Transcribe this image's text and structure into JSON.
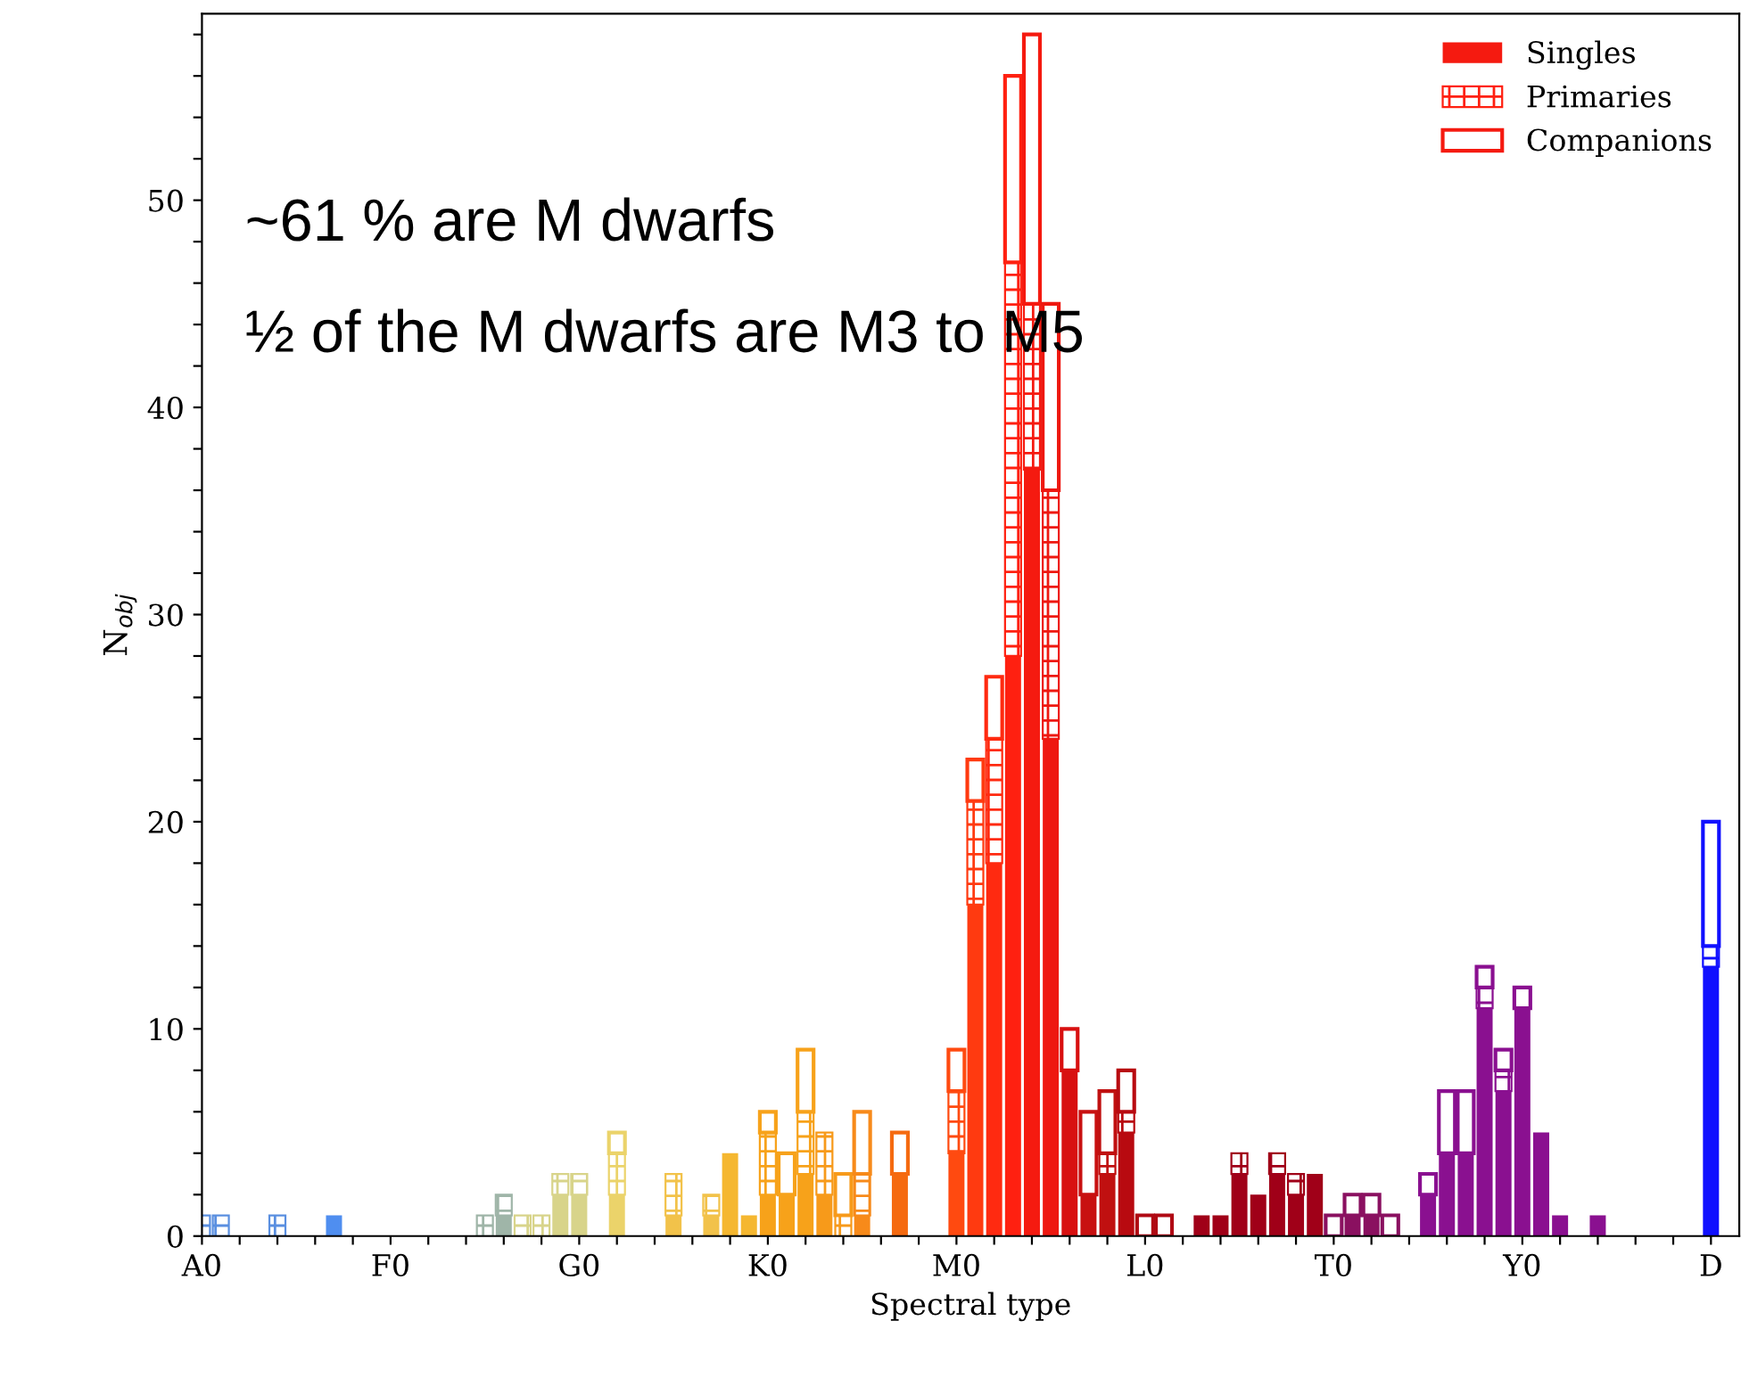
{
  "chart_data": {
    "type": "bar",
    "stacked": true,
    "xlabel": "Spectral type",
    "ylabel": "N$_{obj}$",
    "legend": "top right",
    "grid": false,
    "categories": [
      "A0",
      null,
      null,
      null,
      null,
      null,
      null,
      null,
      null,
      null,
      "F0",
      null,
      null,
      null,
      null,
      null,
      null,
      null,
      null,
      null,
      "G0",
      null,
      null,
      null,
      null,
      null,
      null,
      null,
      null,
      null,
      "K0",
      null,
      null,
      null,
      null,
      null,
      null,
      null,
      null,
      null,
      "M0",
      null,
      null,
      null,
      null,
      null,
      null,
      null,
      null,
      null,
      "L0",
      null,
      null,
      null,
      null,
      null,
      null,
      null,
      null,
      null,
      "T0",
      null,
      null,
      null,
      null,
      null,
      null,
      null,
      null,
      null,
      "Y0",
      null,
      null,
      null,
      null,
      null,
      null,
      null,
      null,
      null,
      "D",
      null
    ],
    "series": [
      {
        "name": "Singles",
        "colors": [
          null,
          null,
          null,
          null,
          null,
          null,
          null,
          "#4f8ef0",
          null,
          null,
          null,
          null,
          null,
          null,
          null,
          null,
          "#9fb5a8",
          null,
          null,
          "#d8d48a",
          "#d8d48a",
          null,
          "#ebd36a",
          null,
          null,
          "#f2c24a",
          null,
          "#f2c24a",
          "#f5b730",
          "#f5b730",
          "#f7a21a",
          "#f7a21a",
          "#f7a21a",
          "#f79a1a",
          null,
          "#f78a1a",
          null,
          "#f56a10",
          null,
          null,
          "#ff4a10",
          "#ff3a10",
          "#ff2a10",
          "#ff2010",
          "#f51a10",
          "#ee1810",
          "#d81010",
          "#c81010",
          "#c01010",
          "#b80a10",
          null,
          null,
          null,
          "#a00018",
          "#a00018",
          "#a00018",
          "#a00018",
          "#a00018",
          "#a00018",
          "#a00018",
          null,
          "#8a1060",
          "#8a1060",
          null,
          null,
          "#8a1090",
          "#8a1090",
          "#8a1090",
          "#8a1090",
          "#8a1090",
          "#8a1090",
          "#8a1090",
          "#8a1090",
          null,
          "#8a1090",
          null,
          null,
          null,
          null,
          null,
          "#1010ff",
          null
        ],
        "values": [
          0,
          0,
          0,
          0,
          0,
          0,
          0,
          1,
          0,
          0,
          0,
          0,
          0,
          0,
          0,
          0,
          1,
          0,
          0,
          2,
          2,
          0,
          2,
          0,
          0,
          1,
          0,
          1,
          4,
          1,
          2,
          2,
          3,
          2,
          0,
          1,
          0,
          3,
          0,
          0,
          4,
          16,
          18,
          28,
          37,
          24,
          8,
          2,
          3,
          5,
          0,
          0,
          0,
          1,
          1,
          3,
          2,
          3,
          2,
          3,
          0,
          1,
          1,
          0,
          0,
          2,
          4,
          4,
          11,
          7,
          11,
          5,
          1,
          0,
          1,
          0,
          0,
          0,
          0,
          0,
          13,
          0
        ]
      },
      {
        "name": "Primaries",
        "colors": [
          "#5a8fe0",
          "#5a8fe0",
          null,
          null,
          "#5a8fe0",
          null,
          null,
          null,
          null,
          null,
          null,
          null,
          null,
          null,
          null,
          "#9fb5a8",
          "#9fb5a8",
          "#d8d48a",
          "#d8d48a",
          "#d8d48a",
          "#d8d48a",
          null,
          "#ebd36a",
          null,
          null,
          "#f2c24a",
          null,
          "#f2c24a",
          null,
          null,
          "#f7a21a",
          null,
          "#f7a21a",
          "#f79a1a",
          "#f79a1a",
          "#f78a1a",
          null,
          null,
          null,
          null,
          "#ff4a10",
          "#ff3a10",
          "#ff2a10",
          "#ff2010",
          "#f51a10",
          "#ee1810",
          null,
          null,
          "#c01010",
          "#b80a10",
          null,
          null,
          null,
          null,
          null,
          "#a00018",
          null,
          "#a00018",
          "#a00018",
          null,
          null,
          null,
          null,
          null,
          null,
          null,
          null,
          null,
          "#8a1090",
          "#8a1090",
          null,
          null,
          null,
          null,
          null,
          null,
          null,
          null,
          null,
          null,
          "#1010ff",
          null
        ],
        "values": [
          1,
          1,
          0,
          0,
          1,
          0,
          0,
          0,
          0,
          0,
          0,
          0,
          0,
          0,
          0,
          1,
          1,
          1,
          1,
          1,
          1,
          0,
          2,
          0,
          0,
          2,
          0,
          1,
          0,
          0,
          3,
          0,
          3,
          3,
          1,
          2,
          0,
          0,
          0,
          0,
          3,
          5,
          6,
          19,
          8,
          12,
          0,
          0,
          1,
          1,
          0,
          0,
          0,
          0,
          0,
          1,
          0,
          1,
          1,
          0,
          0,
          0,
          0,
          0,
          0,
          0,
          0,
          0,
          1,
          1,
          0,
          0,
          0,
          0,
          0,
          0,
          0,
          0,
          0,
          0,
          1,
          0
        ]
      },
      {
        "name": "Companions",
        "colors": [
          null,
          null,
          null,
          null,
          null,
          null,
          null,
          null,
          null,
          null,
          null,
          null,
          null,
          null,
          null,
          null,
          null,
          null,
          null,
          null,
          null,
          null,
          "#ebd36a",
          null,
          null,
          null,
          null,
          null,
          null,
          null,
          "#f7a21a",
          "#f7a21a",
          "#f7a21a",
          null,
          "#f79a1a",
          "#f78a1a",
          null,
          "#f56a10",
          null,
          null,
          "#ff4a10",
          "#ff3a10",
          "#ff2a10",
          "#ff2010",
          "#f51a10",
          "#ee1810",
          "#d81010",
          "#c81010",
          "#c01010",
          "#b80a10",
          "#b00a14",
          "#b00a14",
          null,
          null,
          null,
          null,
          null,
          null,
          null,
          null,
          "#8a1060",
          "#8a1060",
          "#8a1060",
          "#8a1060",
          null,
          "#8a1090",
          "#8a1090",
          "#8a1090",
          "#8a1090",
          "#8a1090",
          "#8a1090",
          null,
          null,
          null,
          null,
          null,
          null,
          null,
          null,
          null,
          "#1010ff",
          null
        ],
        "values": [
          0,
          0,
          0,
          0,
          0,
          0,
          0,
          0,
          0,
          0,
          0,
          0,
          0,
          0,
          0,
          0,
          0,
          0,
          0,
          0,
          0,
          0,
          1,
          0,
          0,
          0,
          0,
          0,
          0,
          0,
          1,
          2,
          3,
          0,
          2,
          3,
          0,
          2,
          0,
          0,
          2,
          2,
          3,
          9,
          13,
          9,
          2,
          4,
          3,
          2,
          1,
          1,
          0,
          0,
          0,
          0,
          0,
          0,
          0,
          0,
          1,
          1,
          1,
          1,
          0,
          1,
          3,
          3,
          1,
          1,
          1,
          0,
          0,
          0,
          0,
          0,
          0,
          0,
          0,
          0,
          6,
          0
        ]
      }
    ],
    "ylim": [
      0,
      59
    ],
    "yticks": [
      0,
      {
        "value": 2,
        "label": null
      },
      {
        "value": 4,
        "label": null
      },
      {
        "value": 6,
        "label": null
      },
      {
        "value": 8,
        "label": null
      },
      10,
      {
        "value": 12,
        "label": null
      },
      {
        "value": 14,
        "label": null
      },
      {
        "value": 16,
        "label": null
      },
      {
        "value": 18,
        "label": null
      },
      20,
      {
        "value": 22,
        "label": null
      },
      {
        "value": 24,
        "label": null
      },
      {
        "value": 26,
        "label": null
      },
      {
        "value": 28,
        "label": null
      },
      30,
      {
        "value": 32,
        "label": null
      },
      {
        "value": 34,
        "label": null
      },
      {
        "value": 36,
        "label": null
      },
      {
        "value": 38,
        "label": null
      },
      40,
      {
        "value": 42,
        "label": null
      },
      {
        "value": 44,
        "label": null
      },
      {
        "value": 46,
        "label": null
      },
      {
        "value": 48,
        "label": null
      },
      50,
      {
        "value": 52,
        "label": null
      },
      {
        "value": 54,
        "label": null
      },
      {
        "value": 56,
        "label": null
      },
      {
        "value": 58,
        "label": null
      }
    ],
    "annotations": [
      "~61 % are M dwarfs",
      "½ of the M dwarfs are M3 to M5"
    ]
  }
}
